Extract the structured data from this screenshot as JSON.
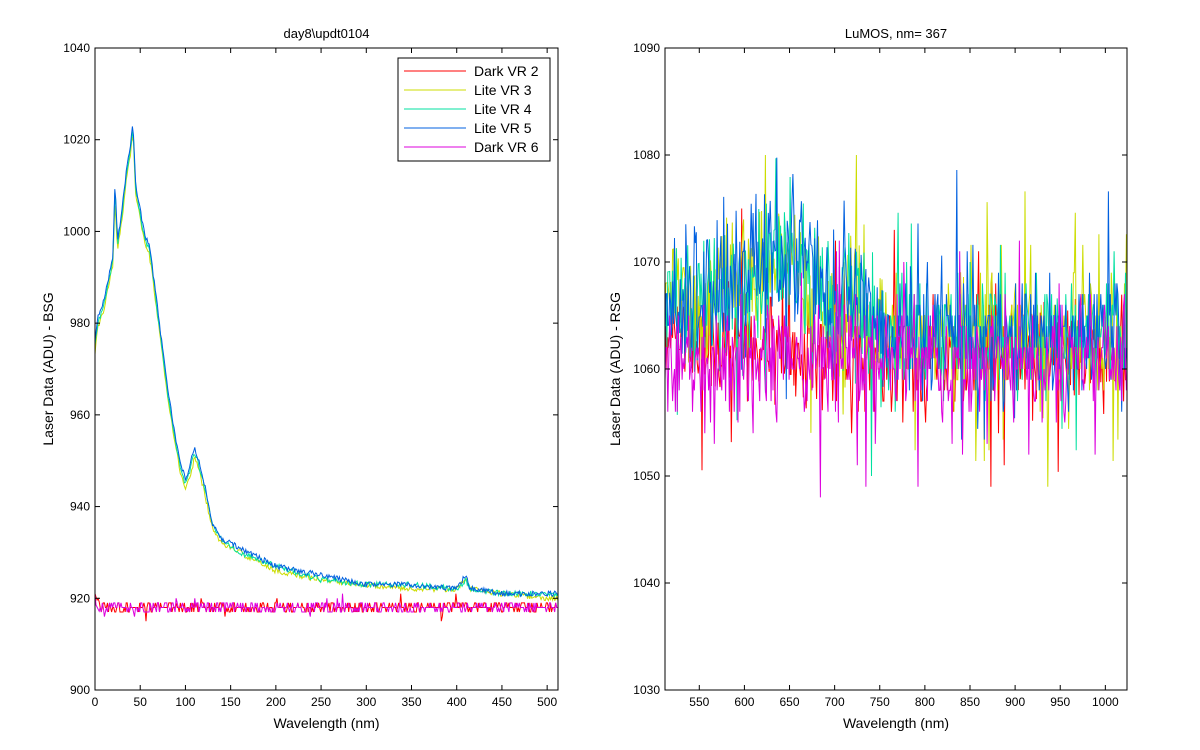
{
  "chart_data": [
    {
      "type": "line",
      "title": "day8\\updt0104",
      "xlabel": "Wavelength (nm)",
      "ylabel": "Laser Data (ADU) - BSG",
      "xlim": [
        0,
        512
      ],
      "ylim": [
        900,
        1040
      ],
      "xticks": [
        0,
        50,
        100,
        150,
        200,
        250,
        300,
        350,
        400,
        450,
        500
      ],
      "yticks": [
        900,
        920,
        940,
        960,
        980,
        1000,
        1020,
        1040
      ],
      "legend_position": "top-right",
      "series": [
        {
          "name": "Dark VR 2",
          "color": "#ff0000",
          "kind": "flat",
          "base": 918,
          "noise": 1,
          "spikes": 2,
          "x": [
            0,
            5,
            512
          ],
          "y": [
            921,
            918,
            918
          ]
        },
        {
          "name": "Lite VR 3",
          "color": "#ccdd00",
          "kind": "curve",
          "noise": 0.6,
          "x": [
            0,
            3,
            10,
            15,
            20,
            22,
            25,
            30,
            35,
            40,
            42,
            45,
            50,
            55,
            60,
            65,
            70,
            80,
            90,
            95,
            100,
            105,
            110,
            115,
            120,
            130,
            140,
            160,
            200,
            250,
            300,
            350,
            400,
            410,
            415,
            420,
            450,
            500,
            512
          ],
          "y": [
            973,
            979,
            983,
            988,
            993,
            1006,
            996,
            1003,
            1012,
            1018,
            1022,
            1008,
            1003,
            997,
            995,
            988,
            980,
            964,
            952,
            947,
            944,
            946,
            951,
            948,
            944,
            935,
            932,
            930,
            926,
            924,
            923,
            922,
            922,
            924,
            922,
            922,
            921,
            920,
            920
          ]
        },
        {
          "name": "Lite VR 4",
          "color": "#00e0a0",
          "kind": "curve",
          "noise": 0.6,
          "x": [
            0,
            3,
            10,
            15,
            20,
            22,
            25,
            30,
            35,
            40,
            42,
            45,
            50,
            55,
            60,
            65,
            70,
            80,
            90,
            95,
            100,
            105,
            110,
            115,
            120,
            130,
            140,
            160,
            200,
            250,
            300,
            350,
            400,
            410,
            415,
            420,
            450,
            500,
            512
          ],
          "y": [
            975,
            980,
            984,
            989,
            994,
            1009,
            997,
            1004,
            1013,
            1019,
            1023,
            1009,
            1004,
            998,
            996,
            989,
            981,
            965,
            953,
            948,
            945,
            948,
            952,
            949,
            945,
            936,
            933,
            930,
            927,
            924,
            923,
            923,
            922,
            924,
            922,
            922,
            921,
            921,
            921
          ]
        },
        {
          "name": "Lite VR 5",
          "color": "#0060e0",
          "kind": "curve",
          "noise": 0.6,
          "x": [
            0,
            3,
            10,
            15,
            20,
            22,
            25,
            30,
            35,
            40,
            42,
            45,
            50,
            55,
            60,
            65,
            70,
            80,
            90,
            95,
            100,
            105,
            110,
            115,
            120,
            130,
            140,
            160,
            200,
            250,
            300,
            350,
            400,
            410,
            415,
            420,
            450,
            500,
            512
          ],
          "y": [
            976,
            981,
            985,
            990,
            995,
            1011,
            998,
            1005,
            1014,
            1020,
            1024,
            1010,
            1005,
            999,
            997,
            990,
            982,
            966,
            954,
            949,
            946,
            949,
            953,
            950,
            946,
            936,
            933,
            931,
            927,
            925,
            923,
            923,
            922,
            925,
            922,
            922,
            921,
            921,
            921
          ]
        },
        {
          "name": "Dark VR 6",
          "color": "#dd00dd",
          "kind": "flat",
          "base": 917.8,
          "noise": 1,
          "spikes": 2,
          "x": [
            0,
            5,
            512
          ],
          "y": [
            920,
            918,
            918
          ]
        }
      ]
    },
    {
      "type": "line",
      "title": "LuMOS, nm= 367",
      "xlabel": "Wavelength (nm)",
      "ylabel": "Laser Data (ADU) - RSG",
      "xlim": [
        512,
        1024
      ],
      "ylim": [
        1030,
        1090
      ],
      "xticks": [
        550,
        600,
        650,
        700,
        750,
        800,
        850,
        900,
        950,
        1000
      ],
      "yticks": [
        1030,
        1040,
        1050,
        1060,
        1070,
        1080,
        1090
      ],
      "series": [
        {
          "color": "#ff0000",
          "kind": "noise",
          "base": 1062,
          "noise": 5,
          "range": [
            1048,
            1075
          ],
          "x": [
            512,
            600,
            700,
            800,
            900,
            1024
          ],
          "y": [
            1063,
            1062,
            1061,
            1061,
            1061,
            1062
          ]
        },
        {
          "color": "#ccdd00",
          "kind": "noise",
          "base": 1065,
          "noise": 6,
          "range": [
            1049,
            1080
          ],
          "x": [
            512,
            600,
            650,
            690,
            700,
            720,
            740,
            760,
            1024
          ],
          "y": [
            1066,
            1068,
            1070,
            1066,
            1063,
            1068,
            1064,
            1063,
            1063
          ]
        },
        {
          "color": "#00e0a0",
          "kind": "noise",
          "base": 1065,
          "noise": 6,
          "range": [
            1050,
            1085
          ],
          "x": [
            512,
            600,
            650,
            690,
            700,
            720,
            740,
            760,
            1024
          ],
          "y": [
            1066,
            1068,
            1071,
            1067,
            1063,
            1069,
            1064,
            1063,
            1063
          ]
        },
        {
          "color": "#0060e0",
          "kind": "noise",
          "base": 1065,
          "noise": 6,
          "range": [
            1049,
            1087
          ],
          "x": [
            512,
            600,
            650,
            690,
            700,
            720,
            740,
            760,
            1024
          ],
          "y": [
            1066,
            1068,
            1071,
            1067,
            1063,
            1069,
            1064,
            1063,
            1063
          ]
        },
        {
          "color": "#dd00dd",
          "kind": "noise",
          "base": 1061,
          "noise": 5,
          "range": [
            1048,
            1072
          ],
          "x": [
            512,
            1024
          ],
          "y": [
            1061,
            1061
          ]
        }
      ]
    }
  ]
}
